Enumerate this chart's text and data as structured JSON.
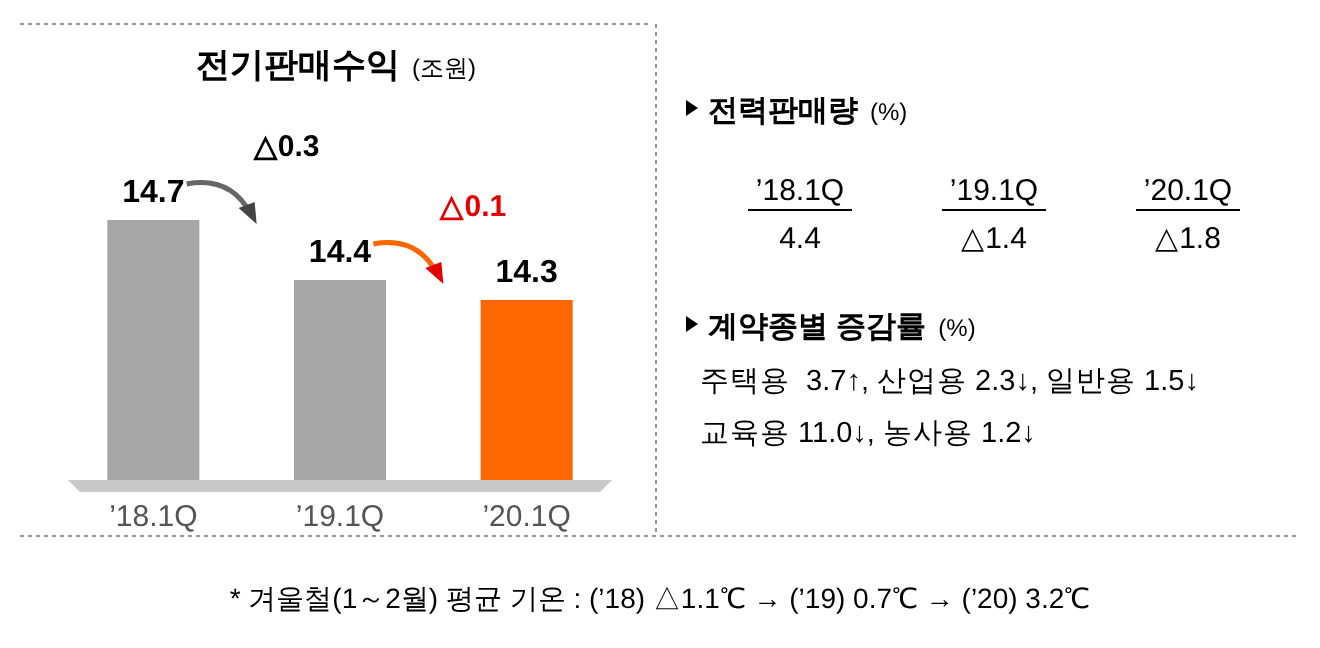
{
  "chart_data": [
    {
      "type": "bar",
      "title": "전기판매수익",
      "subtitle": "(조원)",
      "categories": [
        "’18.1Q",
        "’19.1Q",
        "’20.1Q"
      ],
      "values": [
        14.7,
        14.4,
        14.3
      ],
      "colors": [
        "#a6a6a6",
        "#a6a6a6",
        "#ff6600"
      ],
      "ylim": [
        13.4,
        14.7
      ],
      "data_labels": true,
      "annotations": [
        "△0.3",
        "△0.1",
        "* 겨울철(1～2월) 평균 기온 : (’18) △1.1℃ → (’19) 0.7℃ → (’20) 3.2℃"
      ]
    },
    {
      "type": "other",
      "title": "전력판매량",
      "subtitle": "(%)",
      "categories": [
        "’18.1Q",
        "’19.1Q",
        "’20.1Q"
      ],
      "value_labels": [
        "4.4",
        "△1.4",
        "△1.8"
      ]
    },
    {
      "type": "other",
      "title": "계약종별 증감률",
      "subtitle": "(%)",
      "annotations": [
        "주택용  3.7↑, 산업용 2.3↓, 일반용 1.5↓",
        "교육용 11.0↓, 농사용 1.2↓"
      ]
    }
  ]
}
